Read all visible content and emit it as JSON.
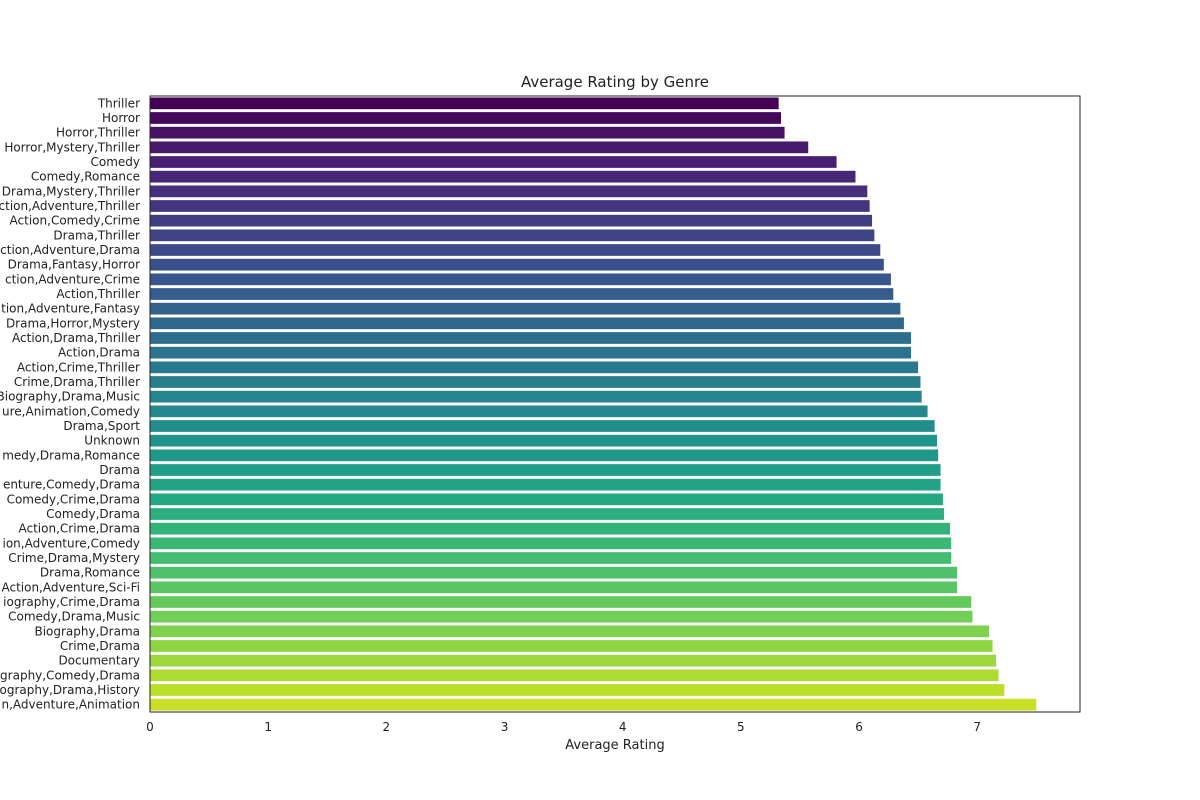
{
  "chart_data": {
    "type": "bar",
    "orientation": "horizontal",
    "title": "Average Rating by Genre",
    "xlabel": "Average Rating",
    "ylabel": "",
    "xlim": [
      0,
      7.87
    ],
    "xticks": [
      "0",
      "1",
      "2",
      "3",
      "4",
      "5",
      "6",
      "7"
    ],
    "grid": false,
    "colormap": "viridis",
    "categories": [
      "Thriller",
      "Horror",
      "Horror,Thriller",
      "Horror,Mystery,Thriller",
      "Comedy",
      "Comedy,Romance",
      "Drama,Mystery,Thriller",
      "ction,Adventure,Thriller",
      "Action,Comedy,Crime",
      "Drama,Thriller",
      "ction,Adventure,Drama",
      "Drama,Fantasy,Horror",
      "ction,Adventure,Crime",
      "Action,Thriller",
      "tion,Adventure,Fantasy",
      "Drama,Horror,Mystery",
      "Action,Drama,Thriller",
      "Action,Drama",
      "Action,Crime,Thriller",
      "Crime,Drama,Thriller",
      "Biography,Drama,Music",
      "ure,Animation,Comedy",
      "Drama,Sport",
      "Unknown",
      "medy,Drama,Romance",
      "Drama",
      "enture,Comedy,Drama",
      "Comedy,Crime,Drama",
      "Comedy,Drama",
      "Action,Crime,Drama",
      "ion,Adventure,Comedy",
      "Crime,Drama,Mystery",
      "Drama,Romance",
      "Action,Adventure,Sci-Fi",
      "iography,Crime,Drama",
      "Comedy,Drama,Music",
      "Biography,Drama",
      "Crime,Drama",
      "Documentary",
      "graphy,Comedy,Drama",
      "ography,Drama,History",
      "n,Adventure,Animation"
    ],
    "values": [
      5.32,
      5.34,
      5.37,
      5.57,
      5.81,
      5.97,
      6.07,
      6.09,
      6.11,
      6.13,
      6.18,
      6.21,
      6.27,
      6.29,
      6.35,
      6.38,
      6.44,
      6.44,
      6.5,
      6.52,
      6.53,
      6.58,
      6.64,
      6.66,
      6.67,
      6.69,
      6.69,
      6.71,
      6.72,
      6.77,
      6.78,
      6.78,
      6.83,
      6.83,
      6.95,
      6.96,
      7.1,
      7.13,
      7.16,
      7.18,
      7.23,
      7.5
    ]
  }
}
